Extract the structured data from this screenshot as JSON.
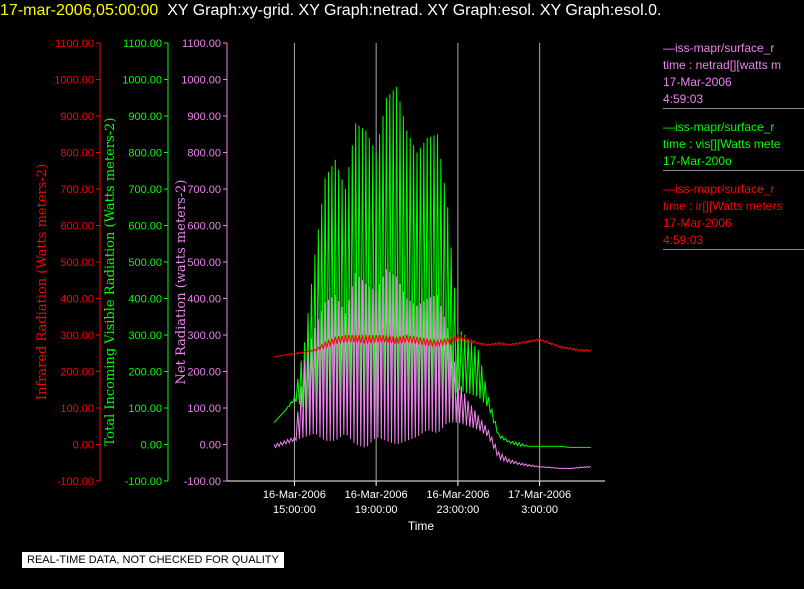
{
  "header": {
    "timestamp": "17-mar-2006,05:00:00",
    "graphs": "XY Graph:xy-grid.  XY Graph:netrad.  XY Graph:esol.  XY Graph:esol.0."
  },
  "notice": "REAL-TIME DATA, NOT CHECKED FOR QUALITY",
  "legend": [
    {
      "color": "#ee82ee",
      "lines": [
        "—iss-mapr/surface_r",
        "time : netrad[][watts m",
        "17-Mar-2006",
        "4:59:03"
      ]
    },
    {
      "color": "#00ff00",
      "lines": [
        "—iss-mapr/surface_r",
        "time : vis[][Watts mete",
        "17-Mar-200o"
      ]
    },
    {
      "color": "#ff0000",
      "lines": [
        "—iss-mapr/surface_r",
        "time : ir[][Watts meters",
        "17-Mar-2006",
        "4:59:03"
      ]
    }
  ],
  "chart_data": {
    "type": "line",
    "xlabel": "Time",
    "x_ticks": [
      {
        "t": 15,
        "line1": "16-Mar-2006",
        "line2": "15:00:00"
      },
      {
        "t": 19,
        "line1": "16-Mar-2006",
        "line2": "19:00:00"
      },
      {
        "t": 23,
        "line1": "16-Mar-2006",
        "line2": "23:00:00"
      },
      {
        "t": 27,
        "line1": "17-Mar-2006",
        "line2": "3:00:00"
      }
    ],
    "xlim_hours_from_16mar_0000": [
      11.7,
      30.2
    ],
    "grid": "vertical",
    "axes": [
      {
        "label": "Infrared Radiation (Watts meters-2)",
        "color": "#ff0000",
        "ylim": [
          -100,
          1100
        ],
        "ticks": [
          "-100.00",
          "0.00",
          "100.00",
          "200.00",
          "300.00",
          "400.00",
          "500.00",
          "600.00",
          "700.00",
          "800.00",
          "900.00",
          "1000.00",
          "1100.00"
        ]
      },
      {
        "label": "Total Incoming Visible Radiation (Watts meters-2)",
        "color": "#00ff00",
        "ylim": [
          -100,
          1100
        ],
        "ticks": [
          "-100.00",
          "0.00",
          "100.00",
          "200.00",
          "300.00",
          "400.00",
          "500.00",
          "600.00",
          "700.00",
          "800.00",
          "900.00",
          "1000.00",
          "1100.00"
        ]
      },
      {
        "label": "Net Radiation (watts meters-2)",
        "color": "#ee82ee",
        "ylim": [
          -100,
          1100
        ],
        "ticks": [
          "-100.00",
          "0.00",
          "100.00",
          "200.00",
          "300.00",
          "400.00",
          "500.00",
          "600.00",
          "700.00",
          "800.00",
          "900.00",
          "1000.00",
          "1100.00"
        ]
      }
    ],
    "series": [
      {
        "name": "vis",
        "color": "#00ff00",
        "x": [
          14.0,
          14.5,
          15.0,
          15.5,
          16.0,
          16.5,
          17.0,
          17.5,
          18.0,
          18.5,
          19.0,
          19.5,
          20.0,
          20.5,
          21.0,
          21.5,
          22.0,
          22.5,
          23.0,
          23.5,
          24.0,
          24.5,
          25.0,
          25.5,
          26.0,
          26.5,
          27.0,
          27.5,
          28.0,
          28.5,
          29.0,
          29.5
        ],
        "y": [
          60,
          90,
          130,
          280,
          520,
          730,
          780,
          700,
          880,
          860,
          800,
          950,
          980,
          860,
          800,
          840,
          850,
          650,
          320,
          290,
          260,
          130,
          30,
          10,
          5,
          -5,
          -5,
          -5,
          -5,
          -8,
          -8,
          -8
        ],
        "min": [
          60,
          90,
          120,
          100,
          90,
          70,
          80,
          100,
          60,
          50,
          100,
          80,
          60,
          90,
          100,
          120,
          110,
          100,
          150,
          140,
          130,
          100,
          20,
          5,
          -5,
          -5,
          -5,
          -5,
          -5,
          -8,
          -8,
          -8
        ]
      },
      {
        "name": "netrad",
        "color": "#ee82ee",
        "x": [
          14.0,
          14.5,
          15.0,
          15.5,
          16.0,
          16.5,
          17.0,
          17.5,
          18.0,
          18.5,
          19.0,
          19.5,
          20.0,
          20.5,
          21.0,
          21.5,
          22.0,
          22.5,
          23.0,
          23.5,
          24.0,
          24.5,
          25.0,
          25.5,
          26.0,
          26.5,
          27.0,
          27.5,
          28.0,
          28.5,
          29.0,
          29.5
        ],
        "y": [
          0,
          10,
          20,
          230,
          320,
          390,
          410,
          360,
          470,
          440,
          420,
          480,
          460,
          400,
          380,
          400,
          410,
          320,
          180,
          120,
          80,
          40,
          -20,
          -40,
          -50,
          -55,
          -60,
          -62,
          -65,
          -65,
          -62,
          -60
        ],
        "min": [
          -10,
          0,
          10,
          20,
          30,
          10,
          10,
          30,
          0,
          -10,
          20,
          10,
          0,
          10,
          20,
          40,
          30,
          60,
          60,
          50,
          40,
          20,
          -40,
          -50,
          -55,
          -60,
          -62,
          -64,
          -66,
          -66,
          -64,
          -62
        ]
      },
      {
        "name": "ir",
        "color": "#ff0000",
        "x": [
          14.0,
          14.5,
          15.0,
          15.5,
          16.0,
          16.5,
          17.0,
          17.5,
          18.0,
          18.5,
          19.0,
          19.5,
          20.0,
          20.5,
          21.0,
          21.5,
          22.0,
          22.5,
          23.0,
          23.5,
          24.0,
          24.5,
          25.0,
          25.5,
          26.0,
          26.5,
          27.0,
          27.5,
          28.0,
          28.5,
          29.0,
          29.5
        ],
        "y": [
          240,
          245,
          250,
          255,
          260,
          280,
          295,
          300,
          300,
          300,
          300,
          300,
          295,
          300,
          295,
          290,
          285,
          290,
          300,
          290,
          280,
          275,
          280,
          275,
          280,
          285,
          290,
          280,
          270,
          265,
          260,
          260
        ],
        "min": [
          240,
          245,
          248,
          250,
          255,
          265,
          275,
          280,
          280,
          275,
          280,
          280,
          275,
          280,
          275,
          270,
          270,
          275,
          285,
          280,
          275,
          270,
          275,
          272,
          275,
          280,
          285,
          275,
          265,
          260,
          255,
          255
        ]
      }
    ]
  }
}
